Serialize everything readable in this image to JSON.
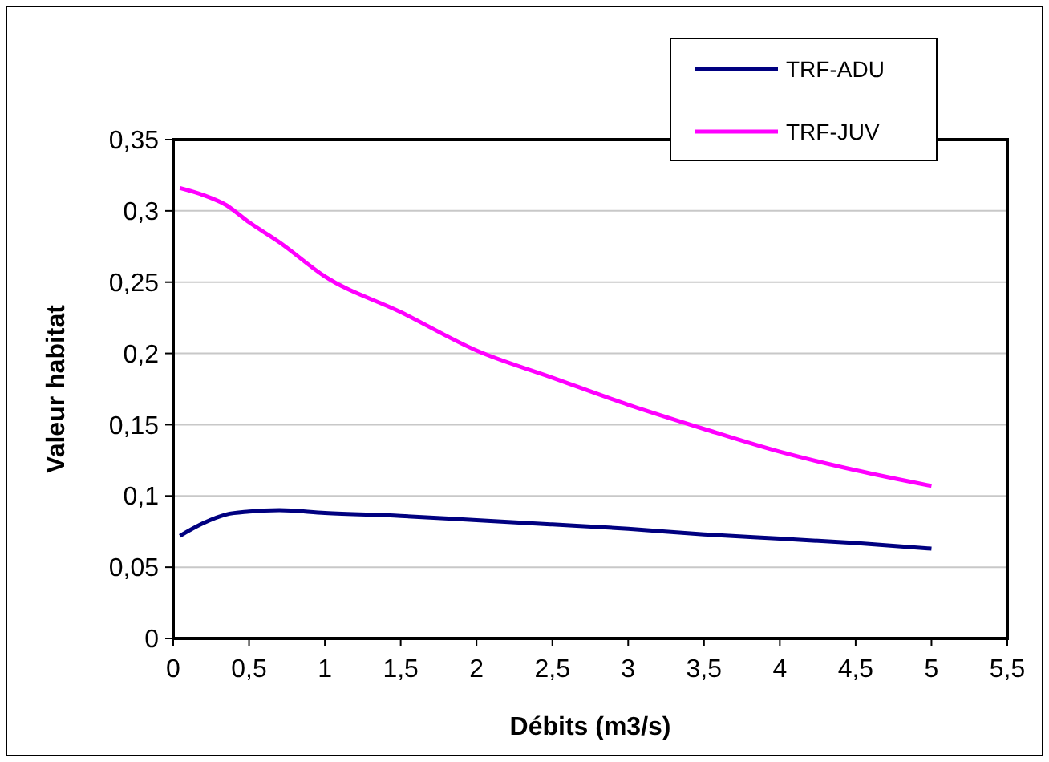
{
  "chart_data": {
    "type": "line",
    "xlabel": "Débits (m3/s)",
    "ylabel": "Valeur habitat",
    "x": [
      0.044,
      0.2,
      0.35,
      0.5,
      0.7,
      1,
      1.5,
      2,
      2.5,
      3,
      3.5,
      4,
      4.5,
      5
    ],
    "series": [
      {
        "name": "TRF-ADU",
        "color": "#000080",
        "values": [
          0.072,
          0.081,
          0.087,
          0.089,
          0.09,
          0.088,
          0.086,
          0.083,
          0.08,
          0.077,
          0.073,
          0.07,
          0.067,
          0.063
        ]
      },
      {
        "name": "TRF-JUV",
        "color": "#ff00ff",
        "values": [
          0.316,
          0.311,
          0.304,
          0.292,
          0.278,
          0.254,
          0.229,
          0.202,
          0.183,
          0.164,
          0.147,
          0.131,
          0.118,
          0.107
        ]
      }
    ],
    "xlim": [
      0,
      5.5
    ],
    "ylim": [
      0,
      0.35
    ],
    "xticks": [
      {
        "value": 0,
        "label": "0"
      },
      {
        "value": 0.5,
        "label": "0,5"
      },
      {
        "value": 1,
        "label": "1"
      },
      {
        "value": 1.5,
        "label": "1,5"
      },
      {
        "value": 2,
        "label": "2"
      },
      {
        "value": 2.5,
        "label": "2,5"
      },
      {
        "value": 3,
        "label": "3"
      },
      {
        "value": 3.5,
        "label": "3,5"
      },
      {
        "value": 4,
        "label": "4"
      },
      {
        "value": 4.5,
        "label": "4,5"
      },
      {
        "value": 5,
        "label": "5"
      },
      {
        "value": 5.5,
        "label": "5,5"
      }
    ],
    "yticks": [
      {
        "value": 0,
        "label": "0"
      },
      {
        "value": 0.05,
        "label": "0,05"
      },
      {
        "value": 0.1,
        "label": "0,1"
      },
      {
        "value": 0.15,
        "label": "0,15"
      },
      {
        "value": 0.2,
        "label": "0,2"
      },
      {
        "value": 0.25,
        "label": "0,25"
      },
      {
        "value": 0.3,
        "label": "0,3"
      },
      {
        "value": 0.35,
        "label": "0,35"
      }
    ],
    "grid": "y",
    "legend": "top right",
    "marker": "none",
    "line_style": "solid"
  }
}
